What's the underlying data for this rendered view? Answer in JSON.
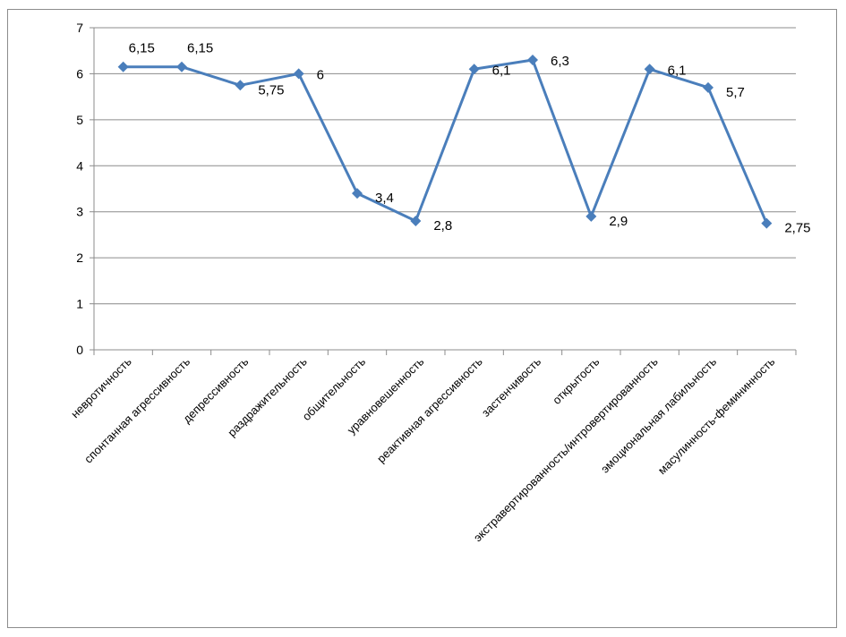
{
  "chart_data": {
    "type": "line",
    "categories": [
      "невротичность",
      "спонтанная агрессивность",
      "депрессивность",
      "раздражительность",
      "общительность",
      "уравновешенность",
      "реактивная агрессивность",
      "застенчивость",
      "открытость",
      "экстравертированность/интровертированность",
      "эмоциональная лабильность",
      "масулинность-фемининность"
    ],
    "series": [
      {
        "values": [
          6.15,
          6.15,
          5.75,
          6,
          3.4,
          2.8,
          6.1,
          6.3,
          2.9,
          6.1,
          5.7,
          2.75
        ],
        "labels": [
          "6,15",
          "6,15",
          "5,75",
          "6",
          "3,4",
          "2,8",
          "6,1",
          "6,3",
          "2,9",
          "6,1",
          "5,7",
          "2,75"
        ],
        "color": "#4a7ebb",
        "marker": "diamond"
      }
    ],
    "yticks": [
      "0",
      "1",
      "2",
      "3",
      "4",
      "5",
      "6",
      "7"
    ],
    "ylim": [
      0,
      7
    ],
    "grid": true,
    "legend": "none",
    "gridline_color": "#8c8c8c"
  }
}
